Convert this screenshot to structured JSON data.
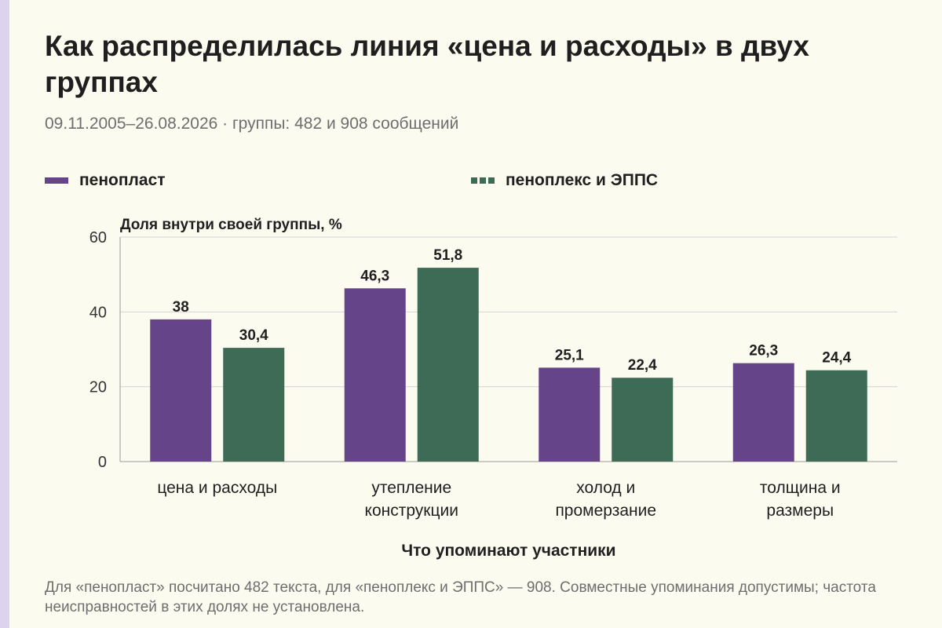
{
  "title": "Как распределилась линия «цена и расходы» в двух группах",
  "subtitle": "09.11.2005–26.08.2026 · группы: 482 и 908 сообщений",
  "note": "Для «пенопласт» посчитано 482 текста, для «пеноплекс и ЭППС» — 908. Совместные упоминания допустимы; частота неисправностей в этих долях не установлена.",
  "chart_data": {
    "type": "bar",
    "title": "Как распределилась линия «цена и расходы» в двух группах",
    "subtitle": "09.11.2005–26.08.2026 · группы: 482 и 908 сообщений",
    "ylabel": "Доля внутри своей группы, %",
    "xlabel": "Что упоминают участники",
    "ylim": [
      0,
      60
    ],
    "yticks": [
      0,
      20,
      40,
      60
    ],
    "yticks_labels": [
      "0",
      "20",
      "40",
      "60"
    ],
    "grid": true,
    "legend_position": "top",
    "categories": [
      [
        "цена и расходы"
      ],
      [
        "утепление",
        "конструкции"
      ],
      [
        "холод и",
        "промерзание"
      ],
      [
        "толщина и",
        "размеры"
      ]
    ],
    "series": [
      {
        "name": "пенопласт",
        "color": "#66448a",
        "values": [
          38,
          46.3,
          25.1,
          26.3
        ],
        "labels": [
          "38",
          "46,3",
          "25,1",
          "26,3"
        ]
      },
      {
        "name": "пеноплекс и ЭППС",
        "color": "#3d6b55",
        "values": [
          30.4,
          51.8,
          22.4,
          24.4
        ],
        "labels": [
          "30,4",
          "51,8",
          "22,4",
          "24,4"
        ]
      }
    ]
  }
}
